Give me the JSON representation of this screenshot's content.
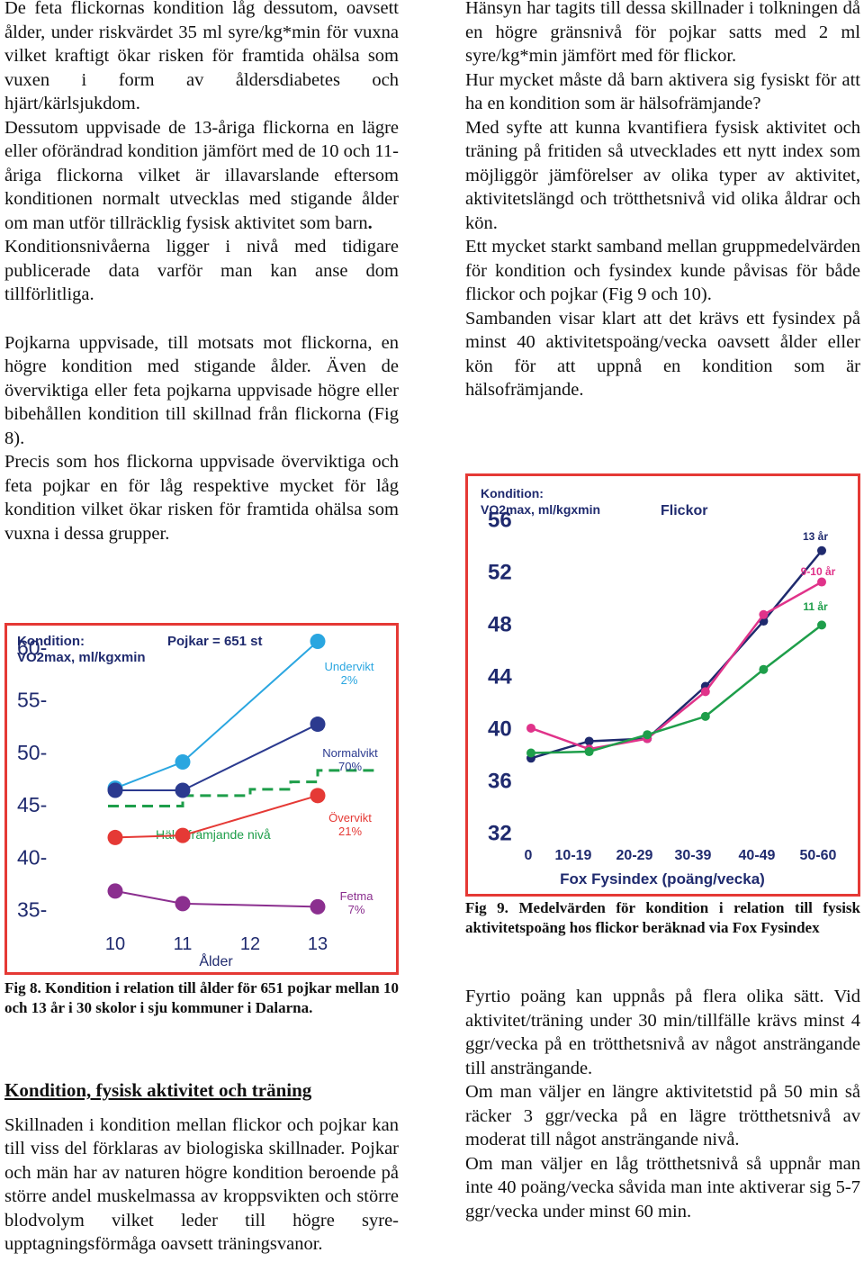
{
  "left_top": {
    "p1": "De feta flickornas kondition låg dessutom, oavsett ålder, under riskvärdet 35 ml syre/kg*min för vuxna vilket kraftigt ökar risken för framtida ohälsa som vuxen i form av åldersdiabetes och hjärt/kärlsjukdom.",
    "p2_a": "Dessutom uppvisade de 13-åriga flickorna en lägre eller oförändrad kondition jämfört med de 10 och 11-åriga flickorna vilket är illavarslande eftersom konditionen normalt utvecklas med stigande ålder om man utför tillräcklig fysisk aktivitet som barn",
    "p2_b": ".",
    "p3": "Konditionsnivåerna ligger i nivå med tidigare publicerade data varför man kan anse dom tillförlitliga.",
    "p4": "Pojkarna uppvisade, till motsats mot flickorna, en högre kondition med stigande ålder. Även de överviktiga eller feta pojkarna uppvisade högre eller bibehållen kondition till skillnad från flickorna (Fig 8).",
    "p5": "Precis som hos flickorna uppvisade överviktiga och feta pojkar en för låg respektive mycket för låg kondition vilket ökar risken för framtida ohälsa som vuxna i dessa grupper."
  },
  "right_top": {
    "p1": "Hänsyn har tagits till dessa skillnader i tolkningen då en högre gränsnivå för pojkar satts med 2 ml syre/kg*min jämfört med för flickor.",
    "p2": "Hur mycket måste då barn aktivera sig fysiskt för att ha en kondition som är hälsofrämjande?",
    "p3": "Med syfte att kunna kvantifiera fysisk aktivitet och träning på fritiden så utvecklades ett nytt index som möjliggör jämförelser av olika typer av aktivitet, aktivitetslängd och trötthetsnivå vid olika åldrar och kön.",
    "p4": "Ett mycket starkt samband mellan gruppmedelvärden för kondition och fysindex kunde påvisas för både flickor och pojkar (Fig 9 och 10).",
    "p5": "Sambanden visar klart att det krävs ett fysindex på minst 40 aktivitetspoäng/vecka oavsett ålder eller kön för att uppnå en kondition som är hälsofrämjande."
  },
  "fig8_caption": "Fig 8. Kondition i relation till ålder för 651 pojkar mellan 10 och 13 år i 30 skolor i sju kommuner i Dalarna.",
  "fig9_caption": "Fig 9. Medelvärden för kondition i relation till fysisk aktivitetspoäng hos flickor beräknad via Fox Fysindex",
  "section": {
    "heading": "Kondition, fysisk aktivitet och träning",
    "p1": "Skillnaden i kondition mellan flickor och pojkar kan till viss del förklaras av biologiska skillnader. Pojkar och män har av naturen högre kondition beroende på större andel muskelmassa av kroppsvikten och större blodvolym vilket leder till högre syre-upptagningsförmåga oavsett träningsvanor."
  },
  "right_bottom": {
    "p1": "Fyrtio poäng kan uppnås på flera olika sätt. Vid aktivitet/träning under 30 min/tillfälle krävs minst 4 ggr/vecka på en trötthetsnivå av något ansträngande till ansträngande.",
    "p2": "Om man väljer en längre aktivitetstid på 50 min så räcker 3 ggr/vecka på en lägre trötthetsnivå av moderat till något ansträngande nivå.",
    "p3": "Om man väljer en låg trötthetsnivå så uppnår man inte 40 poäng/vecka såvida man inte aktiverar sig 5-7 ggr/vecka under minst 60 min."
  },
  "chart_data": [
    {
      "type": "line",
      "title": "Pojkar = 651 st",
      "ylabel_line1": "Kondition:",
      "ylabel_line2": "VO2max, ml/kgxmin",
      "xlabel": "Ålder",
      "x": [
        10,
        11,
        12,
        13
      ],
      "x_ticks": [
        "10",
        "11",
        "12",
        "13"
      ],
      "y_ticks": [
        "60-",
        "55-",
        "50-",
        "45-",
        "40-",
        "35-"
      ],
      "ylim": [
        33,
        62
      ],
      "series": [
        {
          "name": "Undervikt",
          "pct": "2%",
          "color": "#2aa6e0",
          "x": [
            10,
            11,
            13
          ],
          "values": [
            46.5,
            49.0,
            60.5
          ]
        },
        {
          "name": "Normalvikt",
          "pct": "70%",
          "color": "#2b3a8f",
          "x": [
            10,
            11,
            13
          ],
          "values": [
            46.3,
            46.3,
            52.6
          ]
        },
        {
          "name": "Övervikt",
          "pct": "21%",
          "color": "#e53935",
          "x": [
            10,
            11,
            13
          ],
          "values": [
            41.8,
            42.0,
            45.8
          ]
        },
        {
          "name": "Fetma",
          "pct": "7%",
          "color": "#8b2f8f",
          "x": [
            10,
            11,
            13
          ],
          "values": [
            36.7,
            35.5,
            35.2
          ]
        }
      ],
      "reference": {
        "label": "Hälsofrämjande nivå",
        "color": "#1e9e4a",
        "x": [
          10,
          11,
          12,
          12.6,
          13,
          13.9
        ],
        "values": [
          44.8,
          45.8,
          46.4,
          47.1,
          48.2,
          48.2
        ]
      }
    },
    {
      "type": "line",
      "title": "Flickor",
      "ylabel_line1": "Kondition:",
      "ylabel_line2": "VO2max, ml/kgxmin",
      "xlabel": "Fox Fysindex (poäng/vecka)",
      "x_ticks": [
        "0",
        "10-19",
        "20-29",
        "30-39",
        "40-49",
        "50-60"
      ],
      "y_ticks": [
        "56",
        "52",
        "48",
        "44",
        "40",
        "36",
        "32"
      ],
      "ylim": [
        31,
        57
      ],
      "series": [
        {
          "name": "13 år",
          "color": "#1f2a6e",
          "x": [
            0,
            1,
            2,
            3,
            4,
            5
          ],
          "values": [
            37.6,
            38.9,
            39.1,
            43.1,
            48.1,
            53.5
          ]
        },
        {
          "name": "9-10 år",
          "color": "#e0338a",
          "x": [
            0,
            1,
            2,
            3,
            4,
            5
          ],
          "values": [
            39.9,
            38.3,
            39.1,
            42.7,
            48.6,
            51.1
          ]
        },
        {
          "name": "11 år",
          "color": "#1e9e4a",
          "x": [
            0,
            1,
            2,
            3,
            4,
            5
          ],
          "values": [
            38.0,
            38.1,
            39.4,
            40.8,
            44.4,
            47.8
          ]
        }
      ]
    }
  ]
}
